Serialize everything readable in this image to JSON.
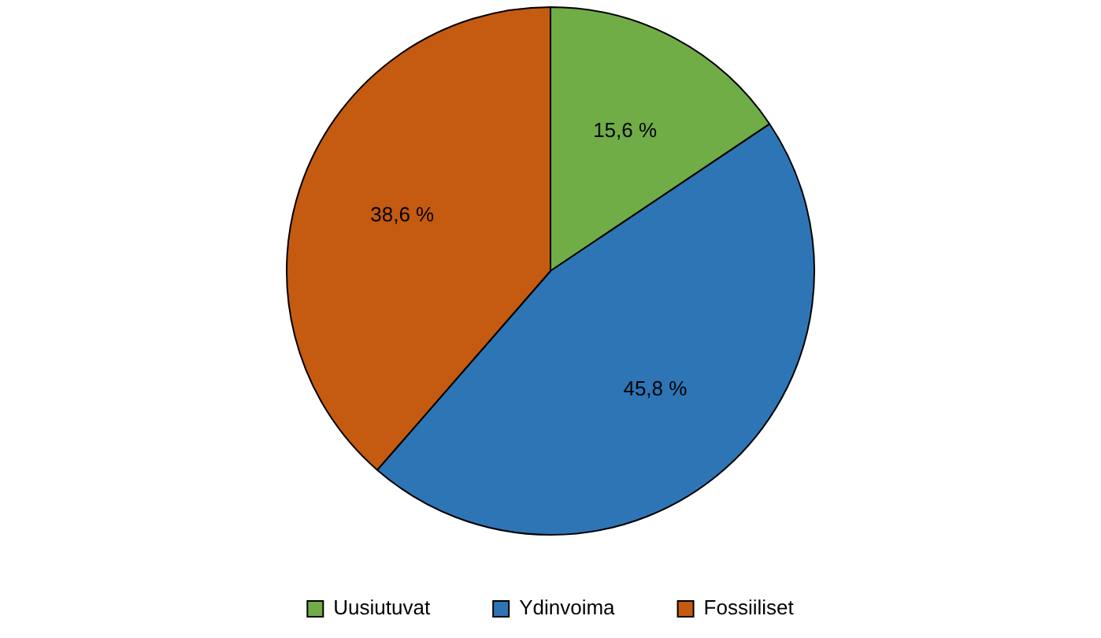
{
  "chart_data": {
    "type": "pie",
    "categories": [
      "Uusiutuvat",
      "Ydinvoima",
      "Fossiiliset"
    ],
    "values": [
      15.6,
      45.8,
      38.6
    ],
    "colors": [
      "#70ad47",
      "#2e75b6",
      "#c55a11"
    ],
    "value_labels": [
      "15,6 %",
      "45,8 %",
      "38,6 %"
    ],
    "legend": "bottom"
  }
}
